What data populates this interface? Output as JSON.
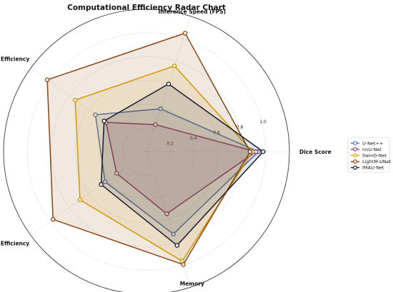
{
  "chart_data": {
    "type": "radar",
    "title": "Computational Efficiency Radar Chart",
    "axes": [
      "Dice Score",
      "Inference Speed (FPS)",
      "Parameter Efficiency",
      "Computational Efficiency",
      "Memory"
    ],
    "rlim": [
      0,
      1.2
    ],
    "rticks": [
      "0.2",
      "0.4",
      "0.6",
      "0.8",
      "1.0"
    ],
    "rtick_values": [
      0.2,
      0.4,
      0.6,
      0.8,
      1.0
    ],
    "grid": true,
    "legend_position": "right",
    "series": [
      {
        "name": "U-Net++",
        "color": "#4a72b0",
        "values": [
          0.94,
          0.38,
          0.53,
          0.43,
          0.73
        ]
      },
      {
        "name": "nnU-Net",
        "color": "#8b3a76",
        "values": [
          0.92,
          0.24,
          0.42,
          0.31,
          0.55
        ]
      },
      {
        "name": "SwinD-Net",
        "color": "#d9a400",
        "values": [
          0.89,
          0.76,
          0.74,
          0.69,
          0.97
        ]
      },
      {
        "name": "LightM-UNet",
        "color": "#8b4513",
        "values": [
          0.87,
          1.05,
          1.03,
          0.97,
          1.0
        ]
      },
      {
        "name": "IMAU-Net",
        "color": "#1a1a2e",
        "values": [
          0.98,
          0.6,
          0.44,
          0.47,
          0.83
        ]
      }
    ]
  }
}
